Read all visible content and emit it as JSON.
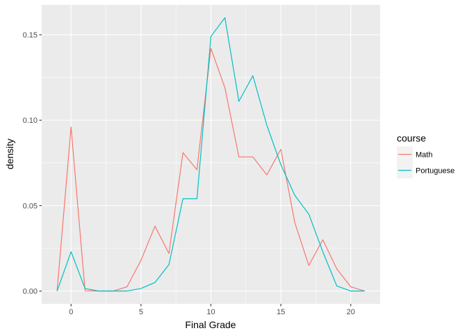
{
  "chart_data": {
    "type": "line",
    "xlabel": "Final Grade",
    "ylabel": "density",
    "xlim": [
      -2.1,
      22.1
    ],
    "ylim": [
      -0.0075,
      0.1675
    ],
    "x_ticks": [
      0,
      5,
      10,
      15,
      20
    ],
    "x_tick_labels": [
      "0",
      "5",
      "10",
      "15",
      "20"
    ],
    "y_ticks": [
      0,
      0.05,
      0.1,
      0.15
    ],
    "y_tick_labels": [
      "0.00",
      "0.05",
      "0.10",
      "0.15"
    ],
    "grid": true,
    "legend": {
      "title": "course",
      "position": "right"
    },
    "x": [
      -1,
      0,
      1,
      2,
      3,
      4,
      5,
      6,
      7,
      8,
      9,
      10,
      11,
      12,
      13,
      14,
      15,
      16,
      17,
      18,
      19,
      20,
      21
    ],
    "series": [
      {
        "name": "Math",
        "color": "#F8766D",
        "values": [
          0,
          0.096,
          0.0002,
          0,
          0,
          0.0025,
          0.018,
          0.038,
          0.022,
          0.081,
          0.071,
          0.142,
          0.119,
          0.0785,
          0.0785,
          0.068,
          0.083,
          0.04,
          0.015,
          0.03,
          0.013,
          0.0025,
          0
        ]
      },
      {
        "name": "Portuguese",
        "color": "#00BFC4",
        "values": [
          0,
          0.023,
          0.0015,
          0,
          0,
          0,
          0.0015,
          0.005,
          0.0155,
          0.054,
          0.054,
          0.149,
          0.16,
          0.111,
          0.126,
          0.097,
          0.074,
          0.056,
          0.045,
          0.023,
          0.003,
          0,
          0
        ]
      }
    ]
  }
}
